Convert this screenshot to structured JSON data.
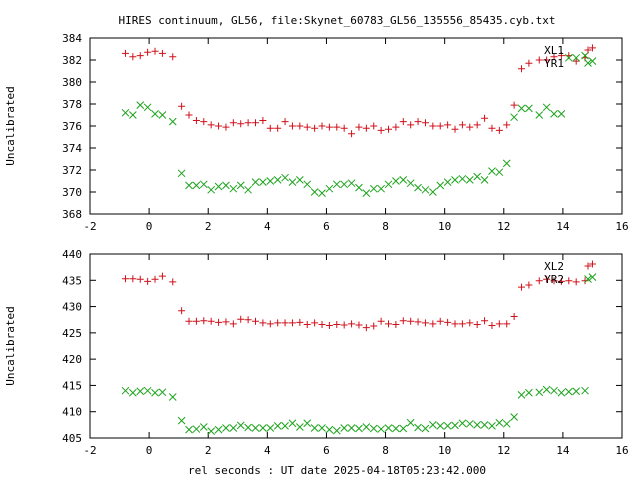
{
  "title": "HIRES continuum, GL56, file:Skynet_60783_GL56_135556_85435.cyb.txt",
  "xlabel": "rel seconds : UT date 2025-04-18T05:23:42.000",
  "colors": {
    "red": "#d0101a",
    "green": "#1aa31a",
    "axis": "#000000"
  },
  "chart_data": [
    {
      "type": "scatter",
      "title": "HIRES continuum, GL56, file:Skynet_60783_GL56_135556_85435.cyb.txt",
      "xlabel": "",
      "ylabel": "Uncalibrated",
      "xlim": [
        -2,
        16
      ],
      "ylim": [
        368,
        384
      ],
      "xticks": [
        -2,
        0,
        2,
        4,
        6,
        8,
        10,
        12,
        14,
        16
      ],
      "yticks": [
        368,
        370,
        372,
        374,
        376,
        378,
        380,
        382,
        384
      ],
      "legend_position": "top-right",
      "grid": false,
      "x": [
        -0.8,
        -0.55,
        -0.3,
        -0.05,
        0.2,
        0.45,
        0.8,
        1.1,
        1.35,
        1.6,
        1.85,
        2.1,
        2.35,
        2.6,
        2.85,
        3.1,
        3.35,
        3.6,
        3.85,
        4.1,
        4.35,
        4.6,
        4.85,
        5.1,
        5.35,
        5.6,
        5.85,
        6.1,
        6.35,
        6.6,
        6.85,
        7.1,
        7.35,
        7.6,
        7.85,
        8.1,
        8.35,
        8.6,
        8.85,
        9.1,
        9.35,
        9.6,
        9.85,
        10.1,
        10.35,
        10.6,
        10.85,
        11.1,
        11.35,
        11.6,
        11.85,
        12.1,
        12.35,
        12.6,
        12.85,
        13.2,
        13.45,
        13.7,
        13.95,
        14.2,
        14.45,
        14.75,
        15.0
      ],
      "series": [
        {
          "name": "XL1",
          "marker": "+",
          "color": "#d0101a",
          "values": [
            382.6,
            382.3,
            382.4,
            382.7,
            382.8,
            382.6,
            382.3,
            377.8,
            377.0,
            376.5,
            376.4,
            376.1,
            376.0,
            375.9,
            376.3,
            376.2,
            376.3,
            376.3,
            376.5,
            375.8,
            375.8,
            376.4,
            376.0,
            376.0,
            375.9,
            375.8,
            376.0,
            375.9,
            375.9,
            375.8,
            375.3,
            375.9,
            375.8,
            376.0,
            375.6,
            375.7,
            375.9,
            376.4,
            376.1,
            376.4,
            376.3,
            376.0,
            376.0,
            376.1,
            375.7,
            376.1,
            375.9,
            376.1,
            376.7,
            375.8,
            375.6,
            376.1,
            377.9,
            381.2,
            381.7,
            382.0,
            382.0,
            382.3,
            382.4,
            382.4,
            381.9,
            382.2,
            383.1
          ]
        },
        {
          "name": "YR1",
          "marker": "x",
          "color": "#1aa31a",
          "values": [
            377.2,
            377.0,
            377.9,
            377.7,
            377.1,
            377.0,
            376.4,
            371.7,
            370.6,
            370.6,
            370.7,
            370.2,
            370.5,
            370.6,
            370.3,
            370.6,
            370.2,
            370.9,
            370.9,
            371.0,
            371.1,
            371.3,
            370.9,
            371.1,
            370.7,
            370.0,
            369.9,
            370.3,
            370.7,
            370.7,
            370.8,
            370.4,
            369.9,
            370.3,
            370.3,
            370.7,
            371.0,
            371.1,
            370.8,
            370.4,
            370.2,
            370.0,
            370.6,
            370.9,
            371.1,
            371.2,
            371.1,
            371.4,
            371.1,
            371.9,
            371.8,
            372.6,
            376.8,
            377.6,
            377.6,
            377.0,
            377.7,
            377.1,
            377.1,
            382.2,
            382.2,
            382.4,
            381.9
          ]
        }
      ]
    },
    {
      "type": "scatter",
      "title": "",
      "xlabel": "rel seconds : UT date 2025-04-18T05:23:42.000",
      "ylabel": "Uncalibrated",
      "xlim": [
        -2,
        16
      ],
      "ylim": [
        405,
        440
      ],
      "xticks": [
        -2,
        0,
        2,
        4,
        6,
        8,
        10,
        12,
        14,
        16
      ],
      "yticks": [
        405,
        410,
        415,
        420,
        425,
        430,
        435,
        440
      ],
      "legend_position": "top-right",
      "grid": false,
      "x": [
        -0.8,
        -0.55,
        -0.3,
        -0.05,
        0.2,
        0.45,
        0.8,
        1.1,
        1.35,
        1.6,
        1.85,
        2.1,
        2.35,
        2.6,
        2.85,
        3.1,
        3.35,
        3.6,
        3.85,
        4.1,
        4.35,
        4.6,
        4.85,
        5.1,
        5.35,
        5.6,
        5.85,
        6.1,
        6.35,
        6.6,
        6.85,
        7.1,
        7.35,
        7.6,
        7.85,
        8.1,
        8.35,
        8.6,
        8.85,
        9.1,
        9.35,
        9.6,
        9.85,
        10.1,
        10.35,
        10.6,
        10.85,
        11.1,
        11.35,
        11.6,
        11.85,
        12.1,
        12.35,
        12.6,
        12.85,
        13.2,
        13.45,
        13.7,
        13.95,
        14.2,
        14.45,
        14.75,
        15.0
      ],
      "series": [
        {
          "name": "XL2",
          "marker": "+",
          "color": "#d0101a",
          "values": [
            435.3,
            435.3,
            435.2,
            434.8,
            435.2,
            435.8,
            434.7,
            429.2,
            427.2,
            427.2,
            427.3,
            427.2,
            427.0,
            427.1,
            426.7,
            427.6,
            427.5,
            427.2,
            426.9,
            426.7,
            426.9,
            426.9,
            426.9,
            427.0,
            426.6,
            426.9,
            426.6,
            426.4,
            426.6,
            426.5,
            426.7,
            426.5,
            426.0,
            426.3,
            427.2,
            426.7,
            426.6,
            427.3,
            427.2,
            427.1,
            426.9,
            426.7,
            427.2,
            427.0,
            426.7,
            426.7,
            426.9,
            426.6,
            427.3,
            426.4,
            426.7,
            426.7,
            428.1,
            433.7,
            434.1,
            434.9,
            435.2,
            434.9,
            434.8,
            434.9,
            434.7,
            434.9,
            438.1
          ]
        },
        {
          "name": "YR2",
          "marker": "x",
          "color": "#1aa31a",
          "values": [
            414.0,
            413.6,
            413.9,
            414.0,
            413.6,
            413.7,
            412.8,
            408.3,
            406.6,
            406.7,
            407.1,
            406.3,
            406.6,
            406.9,
            406.9,
            407.4,
            407.0,
            406.9,
            406.9,
            406.9,
            407.3,
            407.3,
            407.8,
            407.1,
            407.8,
            406.9,
            406.9,
            406.6,
            406.4,
            406.9,
            406.9,
            406.8,
            407.1,
            406.8,
            406.7,
            406.9,
            406.8,
            406.8,
            407.9,
            407.0,
            406.8,
            407.5,
            407.3,
            407.3,
            407.4,
            407.8,
            407.7,
            407.5,
            407.5,
            407.3,
            407.9,
            407.7,
            409.0,
            413.2,
            413.6,
            413.7,
            414.2,
            414.0,
            413.6,
            413.8,
            413.9,
            414.0,
            435.6
          ]
        }
      ]
    }
  ]
}
